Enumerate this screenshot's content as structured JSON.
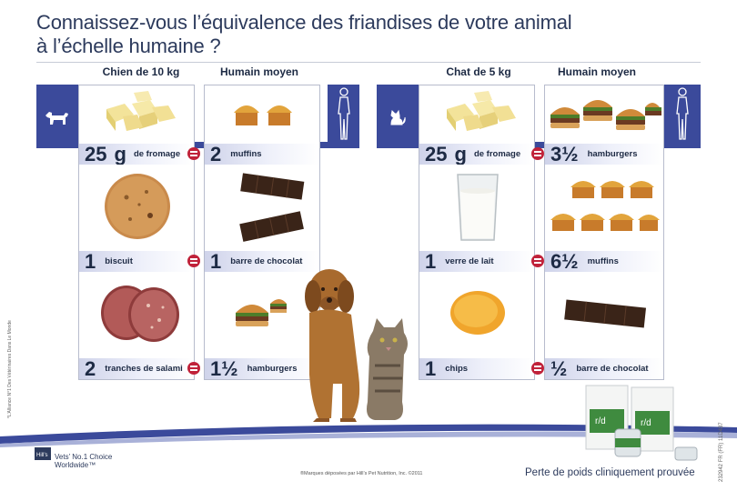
{
  "title_line1": "Connaissez-vous l’équivalence des friandises de votre animal",
  "title_line2": "à l’échelle humaine ?",
  "left_table": {
    "pet_header": "Chien de 10 kg",
    "human_header": "Humain moyen",
    "pet_icon": "dog-icon",
    "human_icon": "human-silhouette-icon",
    "rows": [
      {
        "pet_qty": "25",
        "pet_unit": "g",
        "pet_label": "de fromage",
        "human_qty": "2",
        "human_label": "muffins"
      },
      {
        "pet_qty": "1",
        "pet_unit": "",
        "pet_label": "biscuit",
        "human_qty": "1",
        "human_label": "barre de chocolat"
      },
      {
        "pet_qty": "2",
        "pet_unit": "",
        "pet_label": "tranches de salami",
        "human_qty": "1½",
        "human_label": "hamburgers"
      }
    ]
  },
  "right_table": {
    "pet_header": "Chat de 5 kg",
    "human_header": "Humain moyen",
    "pet_icon": "cat-icon",
    "human_icon": "human-silhouette-icon",
    "rows": [
      {
        "pet_qty": "25",
        "pet_unit": "g",
        "pet_label": "de fromage",
        "human_qty": "3½",
        "human_label": "hamburgers"
      },
      {
        "pet_qty": "1",
        "pet_unit": "",
        "pet_label": "verre de lait",
        "human_qty": "6½",
        "human_label": "muffins"
      },
      {
        "pet_qty": "1",
        "pet_unit": "",
        "pet_label": "chips",
        "human_qty": "½",
        "human_label": "barre de chocolat"
      }
    ]
  },
  "footer": {
    "logo_line1": "Vets’ No.1 Choice",
    "logo_line2": "Worldwide™",
    "trademark": "®Marques déposées par Hill’s Pet Nutrition, Inc. ©2011",
    "tagline": "Perte de poids cliniquement prouvée",
    "ref_code": "232942 FR (FR) 11D437",
    "side_note": "*L’Alliance N°1 Des Vétérinaires Dans Le Monde"
  },
  "colors": {
    "band": "#3b4a9b",
    "equals": "#c0223a",
    "text": "#1d2a44"
  }
}
